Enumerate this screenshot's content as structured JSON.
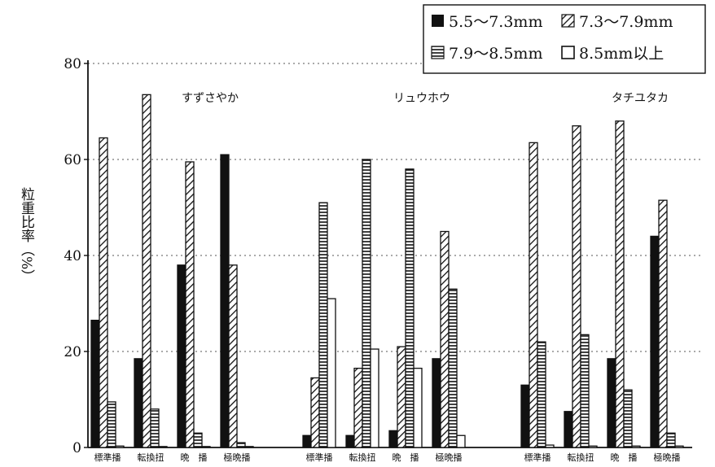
{
  "chart_data": {
    "type": "bar",
    "ylabel": "粒重比率（%）",
    "xlabel": "",
    "ylim": [
      0,
      80
    ],
    "y_ticks": [
      "0",
      "20",
      "40",
      "60",
      "80"
    ],
    "grid": true,
    "legend_placement": "top-right",
    "legend": [
      {
        "name": "5.5～7.3mm",
        "pattern": "solid"
      },
      {
        "name": "7.3～7.9mm",
        "pattern": "diagonal-hatch"
      },
      {
        "name": "7.9～8.5mm",
        "pattern": "horizontal-hatch"
      },
      {
        "name": "8.5mm以上",
        "pattern": "hollow"
      }
    ],
    "groups": [
      {
        "title": "すずさやか",
        "categories": [
          "標準播",
          "転換扭",
          "晩　播",
          "極晩播"
        ],
        "series": [
          {
            "name": "5.5～7.3mm",
            "values": [
              26.5,
              18.5,
              38,
              61
            ]
          },
          {
            "name": "7.3～7.9mm",
            "values": [
              64.5,
              73.5,
              59.5,
              38
            ]
          },
          {
            "name": "7.9～8.5mm",
            "values": [
              9.5,
              8,
              3,
              1
            ]
          },
          {
            "name": "8.5mm以上",
            "values": [
              0.3,
              0.2,
              0.2,
              0.2
            ]
          }
        ]
      },
      {
        "title": "リュウホウ",
        "categories": [
          "標準播",
          "転換扭",
          "晩　播",
          "極晩播"
        ],
        "series": [
          {
            "name": "5.5～7.3mm",
            "values": [
              2.5,
              2.5,
              3.5,
              18.5
            ]
          },
          {
            "name": "7.3～7.9mm",
            "values": [
              14.5,
              16.5,
              21,
              45
            ]
          },
          {
            "name": "7.9～8.5mm",
            "values": [
              51,
              60,
              58,
              33
            ]
          },
          {
            "name": "8.5mm以上",
            "values": [
              31,
              20.5,
              16.5,
              2.5
            ]
          }
        ]
      },
      {
        "title": "タチユタカ",
        "categories": [
          "標準播",
          "転換扭",
          "晩　播",
          "極晩播"
        ],
        "series": [
          {
            "name": "5.5～7.3mm",
            "values": [
              13,
              7.5,
              18.5,
              44
            ]
          },
          {
            "name": "7.3～7.9mm",
            "values": [
              63.5,
              67,
              68,
              51.5
            ]
          },
          {
            "name": "7.9～8.5mm",
            "values": [
              22,
              23.5,
              12,
              3
            ]
          },
          {
            "name": "8.5mm以上",
            "values": [
              0.5,
              0.3,
              0.3,
              0.3
            ]
          }
        ]
      }
    ]
  },
  "colors": {
    "ink": "#111111",
    "background": "#ffffff",
    "grid": "#777777"
  }
}
